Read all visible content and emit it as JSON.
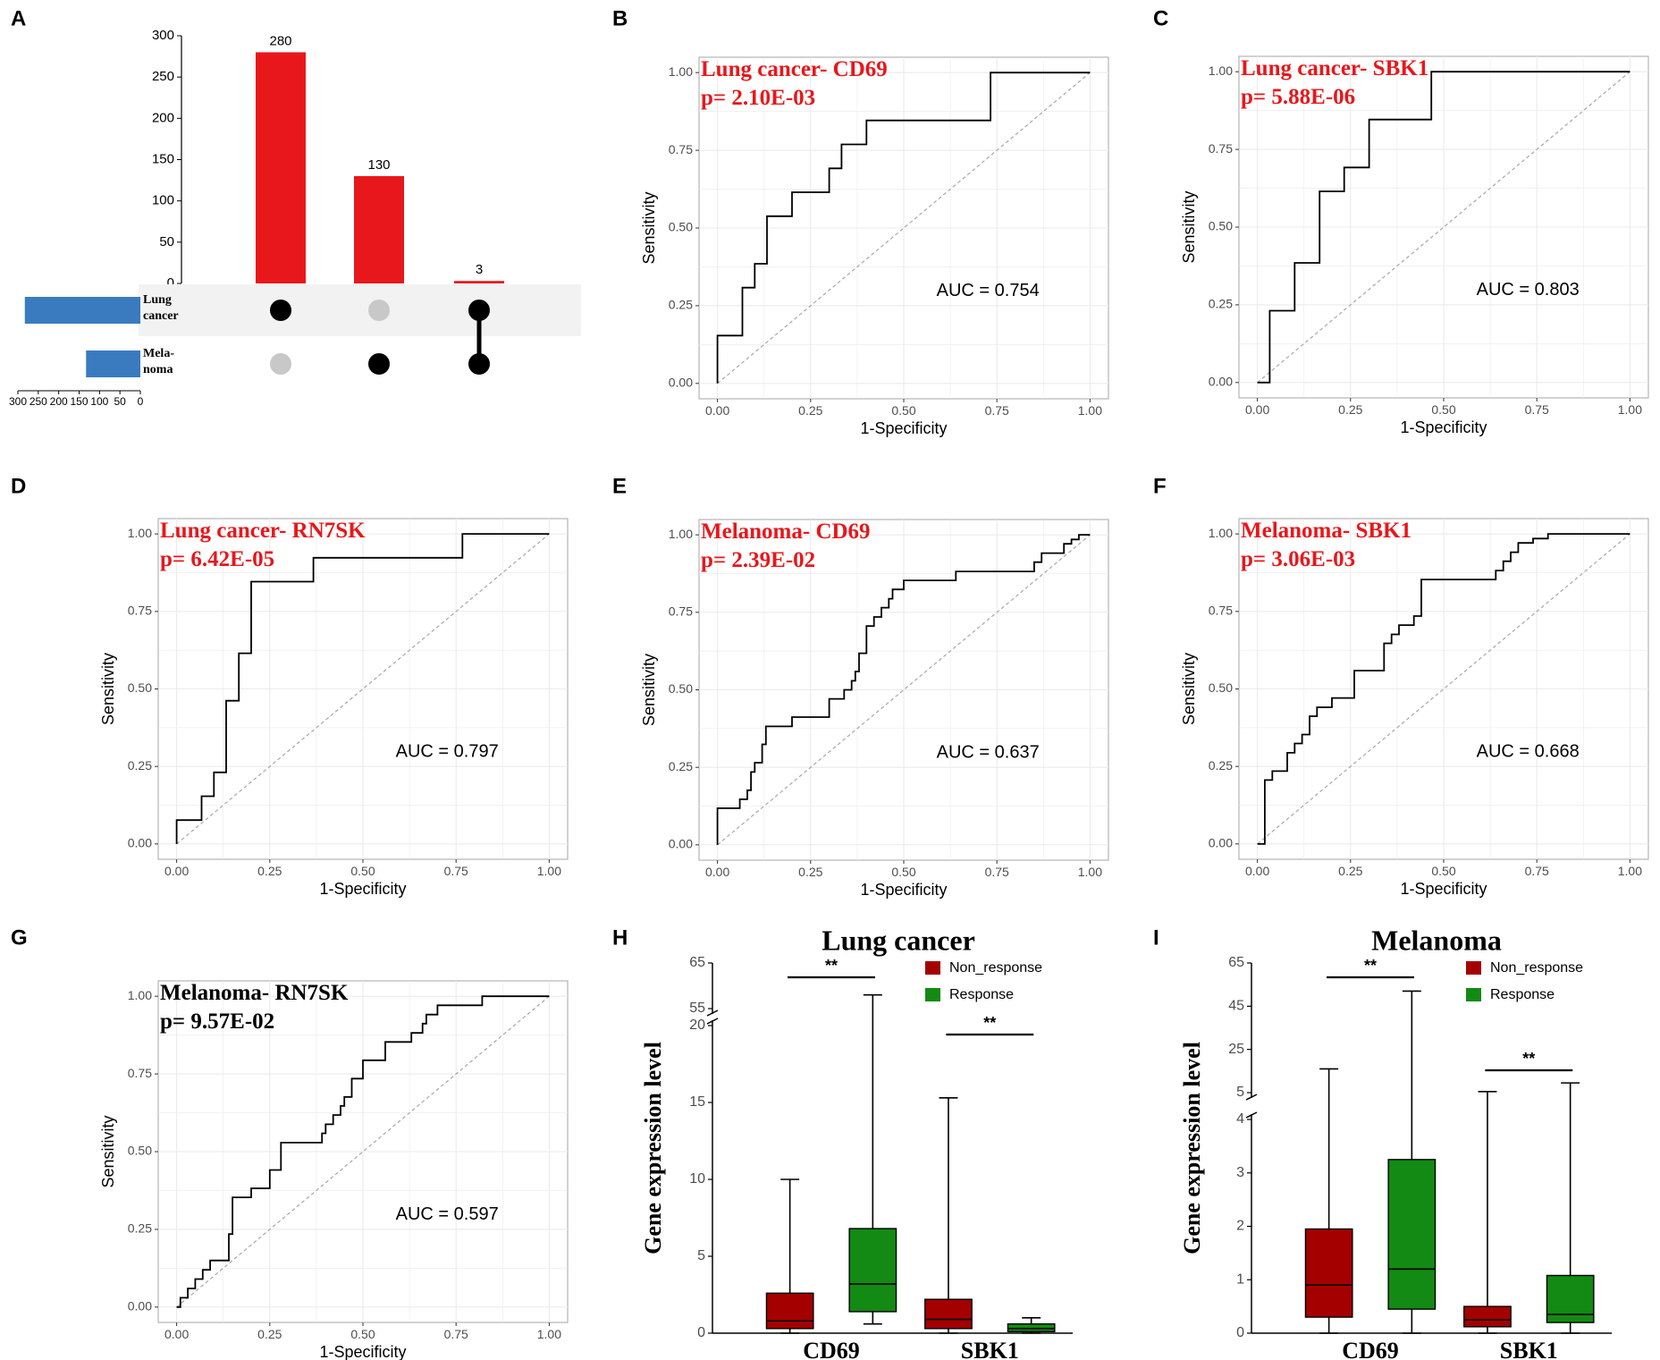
{
  "panel_letters": [
    "A",
    "B",
    "C",
    "D",
    "E",
    "F",
    "G",
    "H",
    "I"
  ],
  "colors": {
    "bar_red": "#e8171b",
    "set_blue": "#3a7bbf",
    "dot_black": "#000000",
    "dot_grey": "#c8c8c8",
    "title_red": "#e8171b",
    "box_red": "#a40000",
    "box_green": "#138a13",
    "frame": "#b3b3b3",
    "grid": "#ebebeb",
    "diag": "#a8a8a8"
  },
  "chart_data": [
    {
      "panel": "A",
      "type": "bar",
      "kind": "upset",
      "categories": [
        "Lung cancer only",
        "Melanoma only",
        "Lung cancer & Melanoma"
      ],
      "values": [
        280,
        130,
        3
      ],
      "value_labels": [
        "280",
        "130",
        "3"
      ],
      "ylim": [
        0,
        300
      ],
      "yticks": [
        "0",
        "50",
        "100",
        "150",
        "200",
        "250",
        "300"
      ],
      "sets": [
        {
          "label_lines": [
            "Lung",
            "cancer"
          ],
          "size": 283
        },
        {
          "label_lines": [
            "Mela-",
            "noma"
          ],
          "size": 133
        }
      ],
      "set_size_ticks": [
        "300",
        "250",
        "200",
        "150",
        "100",
        "50",
        "0"
      ],
      "set_size_xlim": [
        0,
        300
      ],
      "matrix": [
        [
          1,
          0,
          1
        ],
        [
          0,
          1,
          1
        ]
      ]
    },
    {
      "panel": "B",
      "type": "line",
      "kind": "roc",
      "title": "Lung cancer- CD69",
      "pvalue": "p= 2.10E-03",
      "title_color": "red",
      "auc": "AUC = 0.754",
      "xlabel": "1-Specificity",
      "ylabel": "Sensitivity",
      "ticks": [
        "0.00",
        "0.25",
        "0.50",
        "0.75",
        "1.00"
      ],
      "x": [
        0,
        0,
        0.067,
        0.067,
        0.1,
        0.1,
        0.133,
        0.133,
        0.2,
        0.2,
        0.3,
        0.3,
        0.333,
        0.333,
        0.4,
        0.4,
        0.733,
        0.733,
        1.0
      ],
      "y": [
        0,
        0.154,
        0.154,
        0.308,
        0.308,
        0.385,
        0.385,
        0.538,
        0.538,
        0.615,
        0.615,
        0.692,
        0.692,
        0.769,
        0.769,
        0.846,
        0.846,
        1.0,
        1.0
      ]
    },
    {
      "panel": "C",
      "type": "line",
      "kind": "roc",
      "title": "Lung cancer- SBK1",
      "pvalue": "p= 5.88E-06",
      "title_color": "red",
      "auc": "AUC = 0.803",
      "xlabel": "1-Specificity",
      "ylabel": "Sensitivity",
      "ticks": [
        "0.00",
        "0.25",
        "0.50",
        "0.75",
        "1.00"
      ],
      "x": [
        0,
        0.033,
        0.033,
        0.1,
        0.1,
        0.167,
        0.167,
        0.233,
        0.233,
        0.3,
        0.3,
        0.467,
        0.467,
        1.0
      ],
      "y": [
        0,
        0,
        0.231,
        0.231,
        0.385,
        0.385,
        0.615,
        0.615,
        0.692,
        0.692,
        0.846,
        0.846,
        1.0,
        1.0
      ]
    },
    {
      "panel": "D",
      "type": "line",
      "kind": "roc",
      "title": "Lung cancer- RN7SK",
      "pvalue": "p= 6.42E-05",
      "title_color": "red",
      "auc": "AUC = 0.797",
      "xlabel": "1-Specificity",
      "ylabel": "Sensitivity",
      "ticks": [
        "0.00",
        "0.25",
        "0.50",
        "0.75",
        "1.00"
      ],
      "x": [
        0,
        0,
        0.067,
        0.067,
        0.1,
        0.1,
        0.133,
        0.133,
        0.167,
        0.167,
        0.2,
        0.2,
        0.367,
        0.367,
        0.767,
        0.767,
        1.0
      ],
      "y": [
        0,
        0.077,
        0.077,
        0.154,
        0.154,
        0.231,
        0.231,
        0.462,
        0.462,
        0.615,
        0.615,
        0.846,
        0.846,
        0.923,
        0.923,
        1.0,
        1.0
      ]
    },
    {
      "panel": "E",
      "type": "line",
      "kind": "roc",
      "title": "Melanoma- CD69",
      "pvalue": "p= 2.39E-02",
      "title_color": "red",
      "auc": "AUC = 0.637",
      "xlabel": "1-Specificity",
      "ylabel": "Sensitivity",
      "ticks": [
        "0.00",
        "0.25",
        "0.50",
        "0.75",
        "1.00"
      ],
      "x": [
        0,
        0,
        0.06,
        0.06,
        0.08,
        0.08,
        0.09,
        0.09,
        0.1,
        0.1,
        0.12,
        0.12,
        0.13,
        0.13,
        0.2,
        0.2,
        0.3,
        0.3,
        0.34,
        0.34,
        0.36,
        0.36,
        0.37,
        0.37,
        0.38,
        0.38,
        0.4,
        0.4,
        0.42,
        0.42,
        0.44,
        0.44,
        0.46,
        0.46,
        0.47,
        0.47,
        0.5,
        0.5,
        0.64,
        0.64,
        0.85,
        0.85,
        0.87,
        0.87,
        0.93,
        0.93,
        0.95,
        0.95,
        0.97,
        0.97,
        1.0,
        1.0
      ],
      "y": [
        0,
        0.118,
        0.118,
        0.147,
        0.147,
        0.176,
        0.176,
        0.235,
        0.235,
        0.265,
        0.265,
        0.324,
        0.324,
        0.382,
        0.382,
        0.412,
        0.412,
        0.471,
        0.471,
        0.5,
        0.5,
        0.529,
        0.529,
        0.559,
        0.559,
        0.618,
        0.618,
        0.706,
        0.706,
        0.735,
        0.735,
        0.765,
        0.765,
        0.794,
        0.794,
        0.824,
        0.824,
        0.853,
        0.853,
        0.882,
        0.882,
        0.912,
        0.912,
        0.941,
        0.941,
        0.971,
        0.971,
        0.985,
        0.985,
        1.0,
        1.0,
        1.0
      ]
    },
    {
      "panel": "F",
      "type": "line",
      "kind": "roc",
      "title": "Melanoma- SBK1",
      "pvalue": "p= 3.06E-03",
      "title_color": "red",
      "auc": "AUC = 0.668",
      "xlabel": "1-Specificity",
      "ylabel": "Sensitivity",
      "ticks": [
        "0.00",
        "0.25",
        "0.50",
        "0.75",
        "1.00"
      ],
      "x": [
        0,
        0.02,
        0.02,
        0.04,
        0.04,
        0.08,
        0.08,
        0.1,
        0.1,
        0.12,
        0.12,
        0.14,
        0.14,
        0.16,
        0.16,
        0.2,
        0.2,
        0.26,
        0.26,
        0.34,
        0.34,
        0.36,
        0.36,
        0.38,
        0.38,
        0.42,
        0.42,
        0.44,
        0.44,
        0.64,
        0.64,
        0.66,
        0.66,
        0.68,
        0.68,
        0.7,
        0.7,
        0.74,
        0.74,
        0.78,
        0.78,
        0.9,
        0.9,
        1.0
      ],
      "y": [
        0,
        0,
        0.206,
        0.206,
        0.235,
        0.235,
        0.294,
        0.294,
        0.324,
        0.324,
        0.353,
        0.353,
        0.412,
        0.412,
        0.441,
        0.441,
        0.471,
        0.471,
        0.559,
        0.559,
        0.647,
        0.647,
        0.676,
        0.676,
        0.706,
        0.706,
        0.735,
        0.735,
        0.853,
        0.853,
        0.882,
        0.882,
        0.912,
        0.912,
        0.941,
        0.941,
        0.971,
        0.971,
        0.985,
        0.985,
        1.0,
        1.0,
        1.0,
        1.0
      ]
    },
    {
      "panel": "G",
      "type": "line",
      "kind": "roc",
      "title": "Melanoma- RN7SK",
      "pvalue": "p= 9.57E-02",
      "title_color": "black",
      "auc": "AUC = 0.597",
      "xlabel": "1-Specificity",
      "ylabel": "Sensitivity",
      "ticks": [
        "0.00",
        "0.25",
        "0.50",
        "0.75",
        "1.00"
      ],
      "x": [
        0,
        0.01,
        0.01,
        0.03,
        0.03,
        0.05,
        0.05,
        0.07,
        0.07,
        0.09,
        0.09,
        0.14,
        0.14,
        0.15,
        0.15,
        0.2,
        0.2,
        0.25,
        0.25,
        0.28,
        0.28,
        0.39,
        0.39,
        0.4,
        0.4,
        0.42,
        0.42,
        0.44,
        0.44,
        0.45,
        0.45,
        0.47,
        0.47,
        0.5,
        0.5,
        0.56,
        0.56,
        0.63,
        0.63,
        0.66,
        0.66,
        0.67,
        0.67,
        0.7,
        0.7,
        0.82,
        0.82,
        0.94,
        0.94,
        1.0
      ],
      "y": [
        0,
        0,
        0.03,
        0.03,
        0.06,
        0.06,
        0.09,
        0.09,
        0.12,
        0.12,
        0.15,
        0.15,
        0.235,
        0.235,
        0.353,
        0.353,
        0.382,
        0.382,
        0.441,
        0.441,
        0.529,
        0.529,
        0.559,
        0.559,
        0.588,
        0.588,
        0.618,
        0.618,
        0.647,
        0.647,
        0.676,
        0.676,
        0.735,
        0.735,
        0.794,
        0.794,
        0.853,
        0.853,
        0.882,
        0.882,
        0.912,
        0.912,
        0.941,
        0.941,
        0.971,
        0.971,
        1.0,
        1.0,
        1.0,
        1.0
      ]
    },
    {
      "panel": "H",
      "type": "box",
      "kind": "boxplot",
      "title": "Lung cancer",
      "ylabel": "Gene expression level",
      "categories": [
        "CD69",
        "SBK1"
      ],
      "series_names": [
        "Non_response",
        "Response"
      ],
      "significance": [
        "**",
        "**"
      ],
      "y_break": {
        "lower": [
          0,
          20
        ],
        "upper": [
          55,
          65
        ]
      },
      "yticks_lower": [
        "0",
        "5",
        "10",
        "15",
        "20"
      ],
      "yticks_upper": [
        "55",
        "65"
      ],
      "boxes": [
        {
          "category": "CD69",
          "group": "Non_response",
          "min": 0,
          "q1": 0.3,
          "median": 0.8,
          "q3": 2.6,
          "max": 10
        },
        {
          "category": "CD69",
          "group": "Response",
          "min": 0.6,
          "q1": 1.4,
          "median": 3.2,
          "q3": 6.8,
          "max": 58
        },
        {
          "category": "SBK1",
          "group": "Non_response",
          "min": 0,
          "q1": 0.3,
          "median": 0.9,
          "q3": 2.2,
          "max": 15.3
        },
        {
          "category": "SBK1",
          "group": "Response",
          "min": 0,
          "q1": 0.1,
          "median": 0.3,
          "q3": 0.6,
          "max": 1.0
        }
      ]
    },
    {
      "panel": "I",
      "type": "box",
      "kind": "boxplot",
      "title": "Melanoma",
      "ylabel": "Gene expression level",
      "categories": [
        "CD69",
        "SBK1"
      ],
      "series_names": [
        "Non_response",
        "Response"
      ],
      "significance": [
        "**",
        "**"
      ],
      "y_break": {
        "lower": [
          0,
          4
        ],
        "upper": [
          5,
          65
        ]
      },
      "yticks_lower": [
        "0",
        "1",
        "2",
        "3",
        "4"
      ],
      "yticks_upper": [
        "5",
        "25",
        "45",
        "65"
      ],
      "boxes": [
        {
          "category": "CD69",
          "group": "Non_response",
          "min": 0,
          "q1": 0.3,
          "median": 0.9,
          "q3": 1.95,
          "max": 16
        },
        {
          "category": "CD69",
          "group": "Response",
          "min": 0,
          "q1": 0.45,
          "median": 1.2,
          "q3": 3.25,
          "max": 52
        },
        {
          "category": "SBK1",
          "group": "Non_response",
          "min": 0,
          "q1": 0.12,
          "median": 0.25,
          "q3": 0.5,
          "max": 5.5
        },
        {
          "category": "SBK1",
          "group": "Response",
          "min": 0,
          "q1": 0.2,
          "median": 0.35,
          "q3": 1.08,
          "max": 9.5
        }
      ]
    }
  ]
}
